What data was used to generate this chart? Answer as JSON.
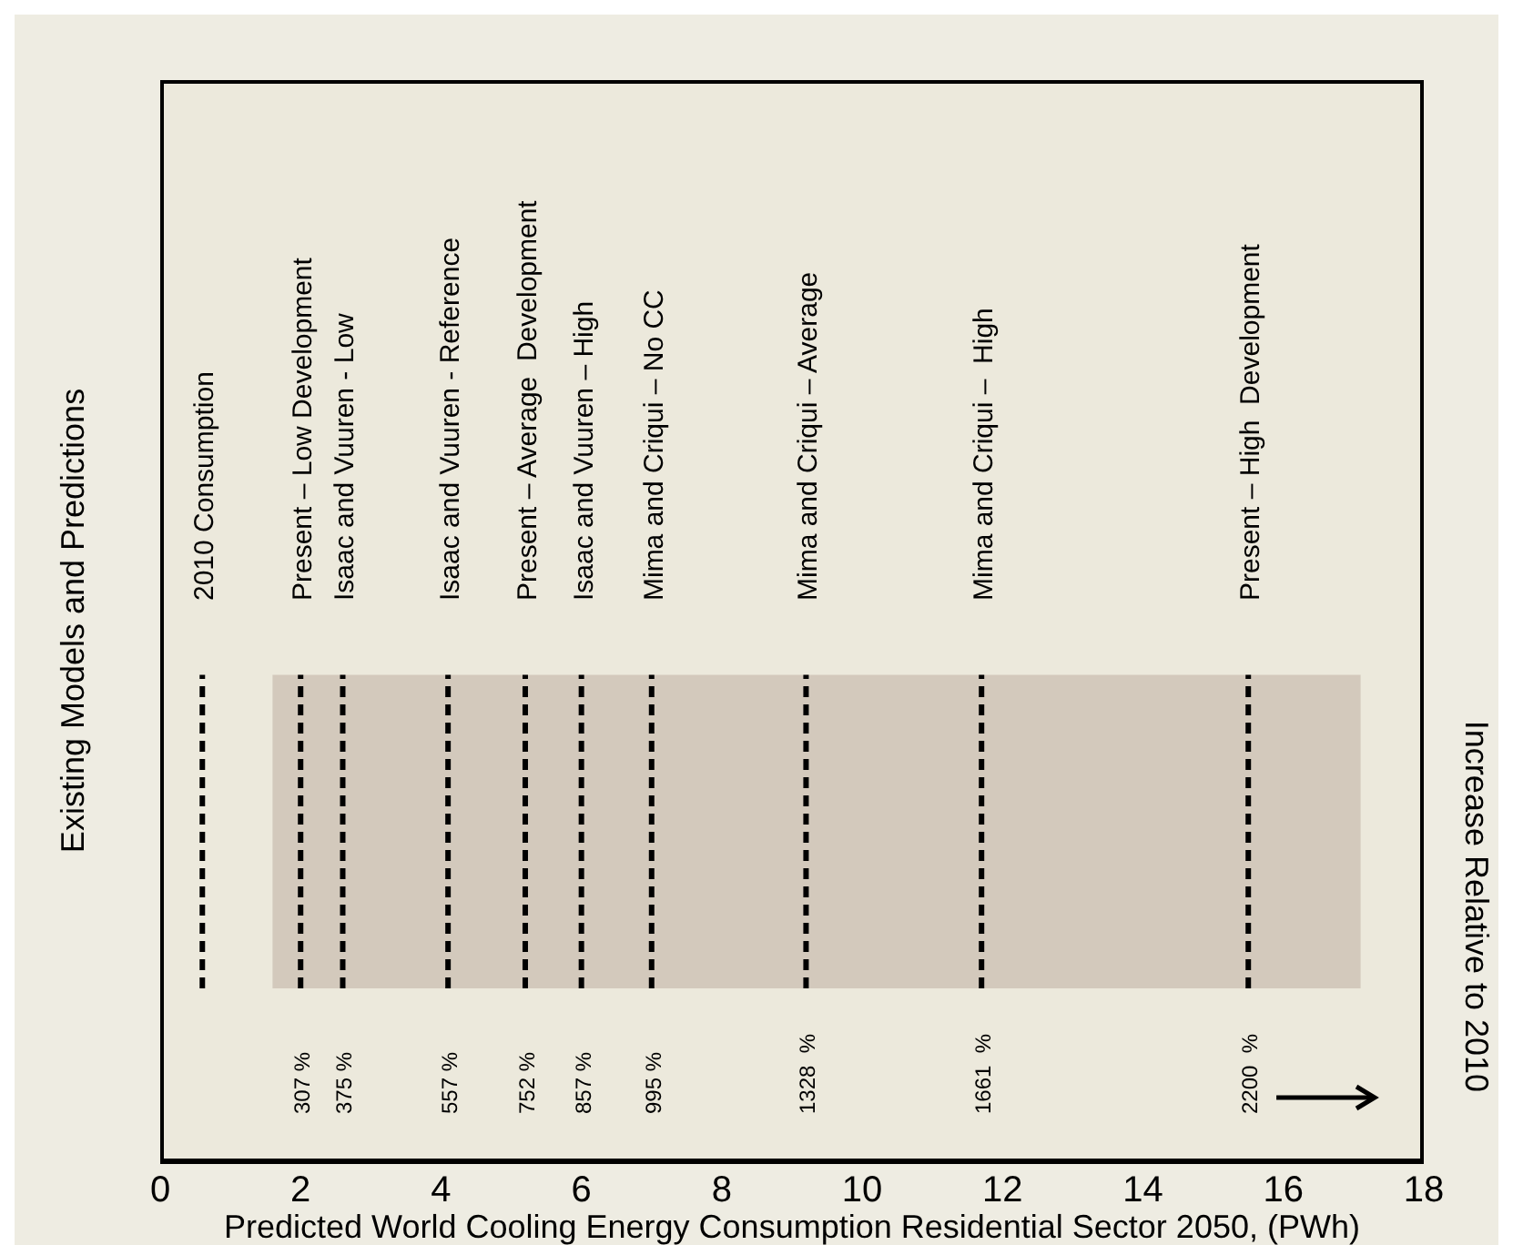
{
  "chart_data": {
    "type": "bar",
    "orientation": "horizontal",
    "tick_labels": "x",
    "categories": [
      null
    ],
    "base": [
      1.6
    ],
    "values": [
      15.5
    ],
    "color": "#d3c9bc",
    "xlabel": "Predicted World Cooling Energy Consumption Residential Sector 2050, (PWh)",
    "ylabel": "Existing Models and Predictions",
    "y2label": "Increase Relative to 2010",
    "xlim": [
      0,
      18
    ],
    "xticks": [
      0,
      2,
      4,
      6,
      8,
      10,
      12,
      14,
      16,
      18
    ],
    "ref_lines": [
      {
        "axis": "x",
        "value": 0.6,
        "label": "2010 Consumption",
        "line_style": "dashed",
        "color": "#000000"
      },
      {
        "axis": "x",
        "value": 2.0,
        "label": "Present – Low Development",
        "line_style": "dashed",
        "color": "#000000"
      },
      {
        "axis": "x",
        "value": 2.6,
        "label": "Isaac and Vuuren - Low",
        "line_style": "dashed",
        "color": "#000000"
      },
      {
        "axis": "x",
        "value": 4.1,
        "label": "Isaac and Vuuren - Reference",
        "line_style": "dashed",
        "color": "#000000"
      },
      {
        "axis": "x",
        "value": 5.2,
        "label": "Present – Average  Development",
        "line_style": "dashed",
        "color": "#000000"
      },
      {
        "axis": "x",
        "value": 6.0,
        "label": "Isaac and Vuuren – High",
        "line_style": "dashed",
        "color": "#000000"
      },
      {
        "axis": "x",
        "value": 7.0,
        "label": "Mima and Criqui – No CC",
        "line_style": "dashed",
        "color": "#000000"
      },
      {
        "axis": "x",
        "value": 9.2,
        "label": "Mima and Criqui – Average",
        "line_style": "dashed",
        "color": "#000000"
      },
      {
        "axis": "x",
        "value": 11.7,
        "label": "Mima and Criqui –  High",
        "line_style": "dashed",
        "color": "#000000"
      },
      {
        "axis": "x",
        "value": 15.5,
        "label": "Present – High  Development",
        "line_style": "dashed",
        "color": "#000000"
      }
    ],
    "annotations": [
      "307 %",
      "375 %",
      "557 %",
      "752 %",
      "857 %",
      "995 %",
      "1328  %",
      "1661  %",
      "2200  %"
    ]
  }
}
